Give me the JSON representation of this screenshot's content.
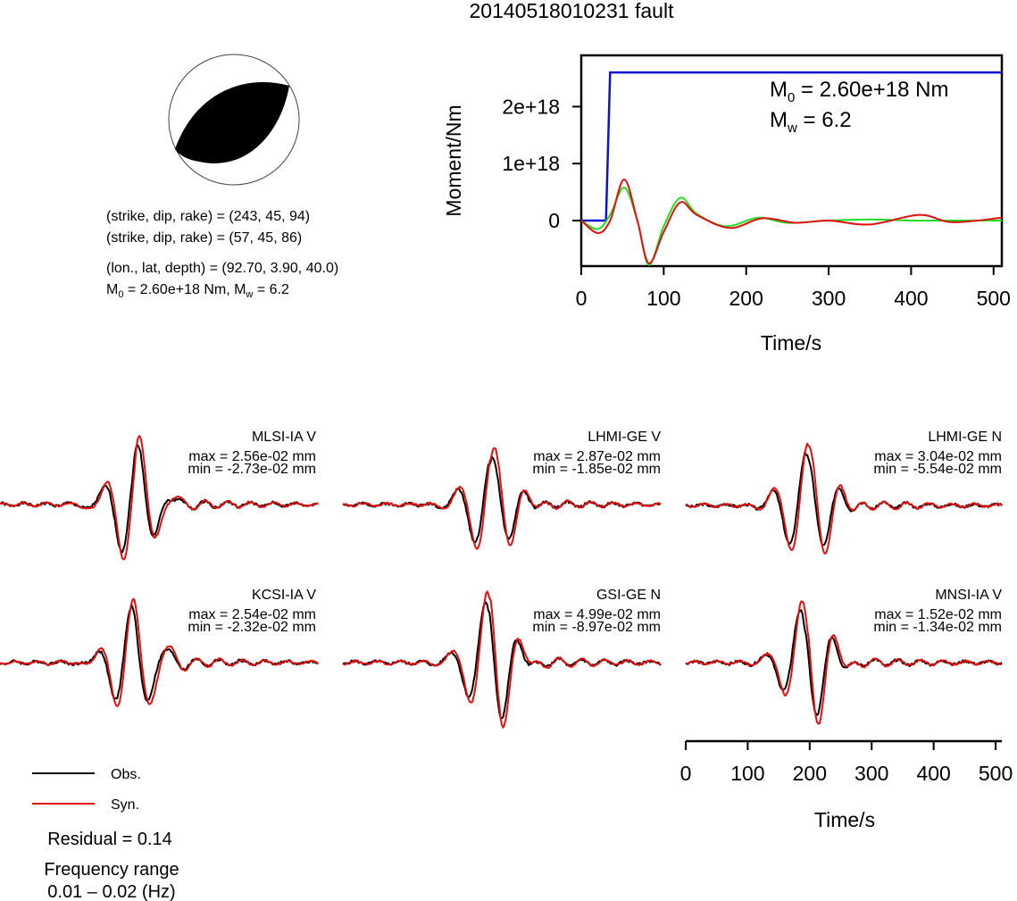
{
  "title": "20140518010231 fault",
  "mechanism": {
    "line1": "(strike, dip, rake) = (243, 45, 94)",
    "line2": "(strike, dip, rake) = (57, 45, 86)",
    "line3": "(lon., lat, depth) = (92.70, 3.90, 40.0)",
    "line4_prefix": "M",
    "line4_sub0": "0",
    "line4_mid": " = 2.60e+18 Nm, M",
    "line4_subw": "w",
    "line4_end": " = 6.2"
  },
  "moment_plot": {
    "ylabel": "Moment/Nm",
    "xlabel": "Time/s",
    "m0_text": "M",
    "m0_sub": "0",
    "m0_val": " = 2.60e+18 Nm",
    "mw_text": "M",
    "mw_sub": "w",
    "mw_val": " = 6.2"
  },
  "legend": {
    "obs": "Obs.",
    "syn": "Syn.",
    "residual": "Residual = 0.14",
    "freq_title": "Frequency range",
    "freq_value": "0.01 – 0.02 (Hz)"
  },
  "waveform_axis": {
    "xlabel": "Time/s"
  },
  "colors": {
    "observed": "#000000",
    "synthetic": "#e01010",
    "moment_curve": "#1010d0",
    "green_curve": "#22dd22"
  },
  "chart_data": [
    {
      "type": "line",
      "title": "",
      "xlabel": "Time/s",
      "ylabel": "Moment/Nm",
      "xlim": [
        0,
        510
      ],
      "ylim": [
        -8e+17,
        2.9e+18
      ],
      "xticks": [
        0,
        100,
        200,
        300,
        400,
        500
      ],
      "yticks": [
        0,
        1e+18,
        2e+18
      ],
      "ytick_labels": [
        "0",
        "1e+18",
        "2e+18"
      ],
      "series": [
        {
          "x": [
            0,
            30,
            35,
            510
          ],
          "y": [
            0,
            0,
            2.6e+18,
            2.6e+18
          ]
        },
        {
          "x": [
            0,
            20,
            35,
            52,
            68,
            82,
            100,
            120,
            140,
            175,
            215,
            250,
            300,
            350,
            400,
            450,
            510
          ],
          "y": [
            0,
            -1.5e+17,
            1e+17,
            5.8e+17,
            0,
            -7.8e+17,
            -1e+17,
            4e+17,
            1.2e+17,
            -1e+17,
            5e+16,
            -4e+16,
            0,
            2e+16,
            0,
            0,
            0
          ]
        },
        {
          "x": [
            0,
            20,
            35,
            52,
            68,
            82,
            100,
            120,
            140,
            180,
            220,
            260,
            300,
            350,
            410,
            450,
            510
          ],
          "y": [
            0,
            -2.2e+17,
            0,
            7.2e+17,
            0,
            -7.5e+17,
            -2e+17,
            3.2e+17,
            1e+17,
            -1.3e+17,
            4e+16,
            -4e+16,
            0,
            -7e+16,
            1e+17,
            -3e+16,
            5e+16
          ]
        }
      ]
    },
    {
      "type": "line",
      "title": "",
      "xlabel": "Time/s",
      "xlim": [
        0,
        510
      ],
      "xticks": [
        0,
        100,
        200,
        300,
        400,
        500
      ],
      "panels": [
        {
          "station": "MLSI-IA V",
          "max": "max = 2.56e-02 mm",
          "min": "min = -2.73e-02 mm"
        },
        {
          "station": "LHMI-GE V",
          "max": "max = 2.87e-02 mm",
          "min": "min = -1.85e-02 mm"
        },
        {
          "station": "LHMI-GE N",
          "max": "max = 3.04e-02 mm",
          "min": "min = -5.54e-02 mm"
        },
        {
          "station": "KCSI-IA V",
          "max": "max = 2.54e-02 mm",
          "min": "min = -2.32e-02 mm"
        },
        {
          "station": "GSI-GE N",
          "max": "max = 4.99e-02 mm",
          "min": "min = -8.97e-02 mm"
        },
        {
          "station": "MNSI-IA V",
          "max": "max = 1.52e-02 mm",
          "min": "min = -1.34e-02 mm"
        }
      ],
      "series": [
        {
          "name": "Obs."
        },
        {
          "name": "Syn."
        }
      ]
    }
  ]
}
